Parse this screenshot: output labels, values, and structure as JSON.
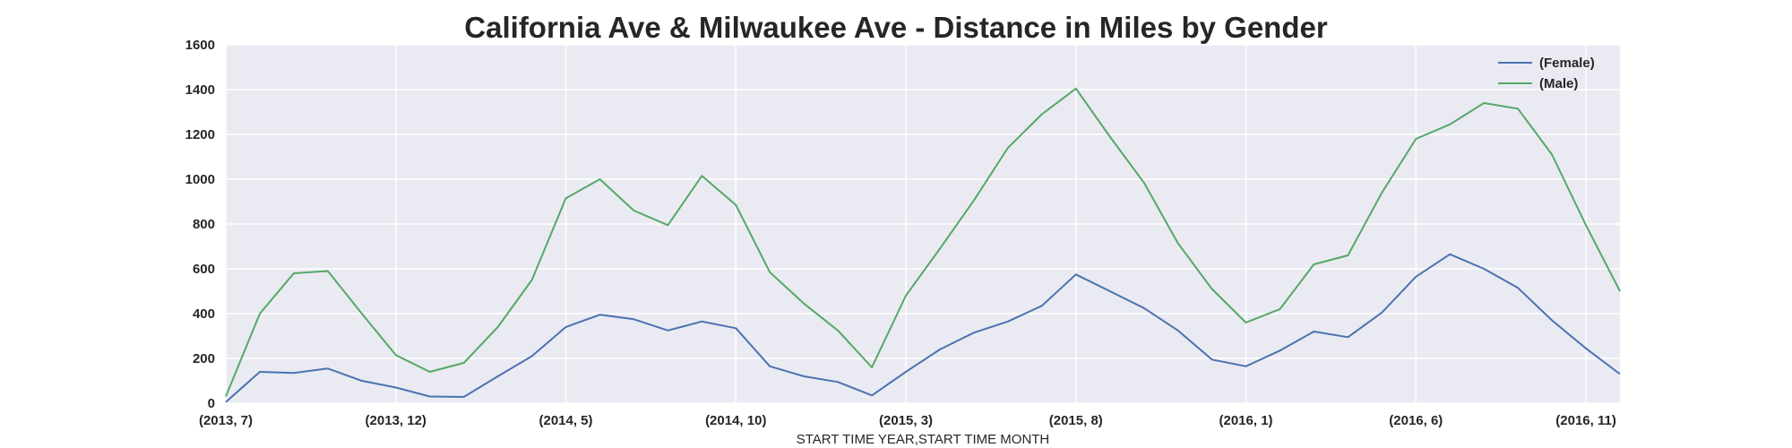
{
  "chart_data": {
    "type": "line",
    "title": "California Ave & Milwaukee Ave - Distance in Miles by Gender",
    "xlabel": "START TIME YEAR,START TIME MONTH",
    "ylabel": "",
    "ylim": [
      0,
      1600
    ],
    "yticks": [
      0,
      200,
      400,
      600,
      800,
      1000,
      1200,
      1400,
      1600
    ],
    "x": [
      "(2013, 7)",
      "(2013, 8)",
      "(2013, 9)",
      "(2013, 10)",
      "(2013, 11)",
      "(2013, 12)",
      "(2014, 1)",
      "(2014, 2)",
      "(2014, 3)",
      "(2014, 4)",
      "(2014, 5)",
      "(2014, 6)",
      "(2014, 7)",
      "(2014, 8)",
      "(2014, 9)",
      "(2014, 10)",
      "(2014, 11)",
      "(2014, 12)",
      "(2015, 1)",
      "(2015, 2)",
      "(2015, 3)",
      "(2015, 4)",
      "(2015, 5)",
      "(2015, 6)",
      "(2015, 7)",
      "(2015, 8)",
      "(2015, 9)",
      "(2015, 10)",
      "(2015, 11)",
      "(2015, 12)",
      "(2016, 1)",
      "(2016, 2)",
      "(2016, 3)",
      "(2016, 4)",
      "(2016, 5)",
      "(2016, 6)",
      "(2016, 7)",
      "(2016, 8)",
      "(2016, 9)",
      "(2016, 10)",
      "(2016, 11)",
      "(2016, 12)"
    ],
    "xtick_labels": [
      "(2013, 7)",
      "(2013, 12)",
      "(2014, 5)",
      "(2014, 10)",
      "(2015, 3)",
      "(2015, 8)",
      "(2016, 1)",
      "(2016, 6)",
      "(2016, 11)"
    ],
    "series": [
      {
        "name": "(Female)",
        "color": "#4c72b0",
        "values": [
          5,
          140,
          135,
          155,
          100,
          70,
          30,
          28,
          120,
          210,
          340,
          395,
          375,
          325,
          365,
          335,
          165,
          120,
          95,
          35,
          140,
          240,
          315,
          365,
          435,
          575,
          500,
          425,
          325,
          195,
          165,
          235,
          320,
          295,
          405,
          565,
          665,
          600,
          515,
          370,
          245,
          130
        ]
      },
      {
        "name": "(Male)",
        "color": "#55a868",
        "values": [
          30,
          400,
          580,
          590,
          400,
          215,
          140,
          180,
          340,
          550,
          915,
          1000,
          860,
          795,
          1015,
          885,
          585,
          445,
          325,
          160,
          480,
          690,
          905,
          1140,
          1290,
          1405,
          1190,
          985,
          715,
          510,
          360,
          420,
          620,
          660,
          940,
          1180,
          1245,
          1340,
          1315,
          1110,
          795,
          500
        ]
      }
    ],
    "grid": true,
    "legend_position": "top-right"
  }
}
